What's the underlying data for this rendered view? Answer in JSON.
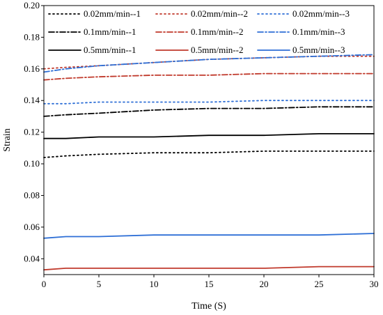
{
  "chart_data": {
    "type": "line",
    "title": "",
    "xlabel": "Time (S)",
    "ylabel": "Strain",
    "xlim": [
      0,
      30
    ],
    "ylim": [
      0.03,
      0.2
    ],
    "xticks": [
      0,
      5,
      10,
      15,
      20,
      25,
      30
    ],
    "xtick_labels": [
      "0",
      "5",
      "10",
      "15",
      "20",
      "25",
      "30"
    ],
    "yticks": [
      0.04,
      0.06,
      0.08,
      0.1,
      0.12,
      0.14,
      0.16,
      0.18,
      0.2
    ],
    "ytick_labels": [
      "0.04",
      "0.06",
      "0.08",
      "0.10",
      "0.12",
      "0.14",
      "0.16",
      "0.18",
      "0.20"
    ],
    "grid": false,
    "legend_position": "top",
    "x": [
      0,
      2,
      5,
      10,
      15,
      20,
      25,
      30
    ],
    "series": [
      {
        "name": "0.02mm/min--1",
        "color": "#000000",
        "style": "dot",
        "values": [
          0.104,
          0.105,
          0.106,
          0.107,
          0.107,
          0.108,
          0.108,
          0.108
        ]
      },
      {
        "name": "0.02mm/min--2",
        "color": "#c0392b",
        "style": "dot",
        "values": [
          0.16,
          0.161,
          0.162,
          0.164,
          0.166,
          0.167,
          0.168,
          0.168
        ]
      },
      {
        "name": "0.02mm/min--3",
        "color": "#2e6fd6",
        "style": "dot",
        "values": [
          0.138,
          0.138,
          0.139,
          0.139,
          0.139,
          0.14,
          0.14,
          0.14
        ]
      },
      {
        "name": "0.1mm/min--1",
        "color": "#000000",
        "style": "dashdot",
        "values": [
          0.13,
          0.131,
          0.132,
          0.134,
          0.135,
          0.135,
          0.136,
          0.136
        ]
      },
      {
        "name": "0.1mm/min--2",
        "color": "#c0392b",
        "style": "dashdot",
        "values": [
          0.153,
          0.154,
          0.155,
          0.156,
          0.156,
          0.157,
          0.157,
          0.157
        ]
      },
      {
        "name": "0.1mm/min--3",
        "color": "#2e6fd6",
        "style": "dashdot",
        "values": [
          0.158,
          0.16,
          0.162,
          0.164,
          0.166,
          0.167,
          0.168,
          0.169
        ]
      },
      {
        "name": "0.5mm/min--1",
        "color": "#000000",
        "style": "solid",
        "values": [
          0.116,
          0.116,
          0.117,
          0.117,
          0.118,
          0.118,
          0.119,
          0.119
        ]
      },
      {
        "name": "0.5mm/min--2",
        "color": "#c0392b",
        "style": "solid",
        "values": [
          0.033,
          0.034,
          0.034,
          0.034,
          0.034,
          0.034,
          0.035,
          0.035
        ]
      },
      {
        "name": "0.5mm/min--3",
        "color": "#2e6fd6",
        "style": "solid",
        "values": [
          0.053,
          0.054,
          0.054,
          0.055,
          0.055,
          0.055,
          0.055,
          0.056
        ]
      }
    ]
  }
}
